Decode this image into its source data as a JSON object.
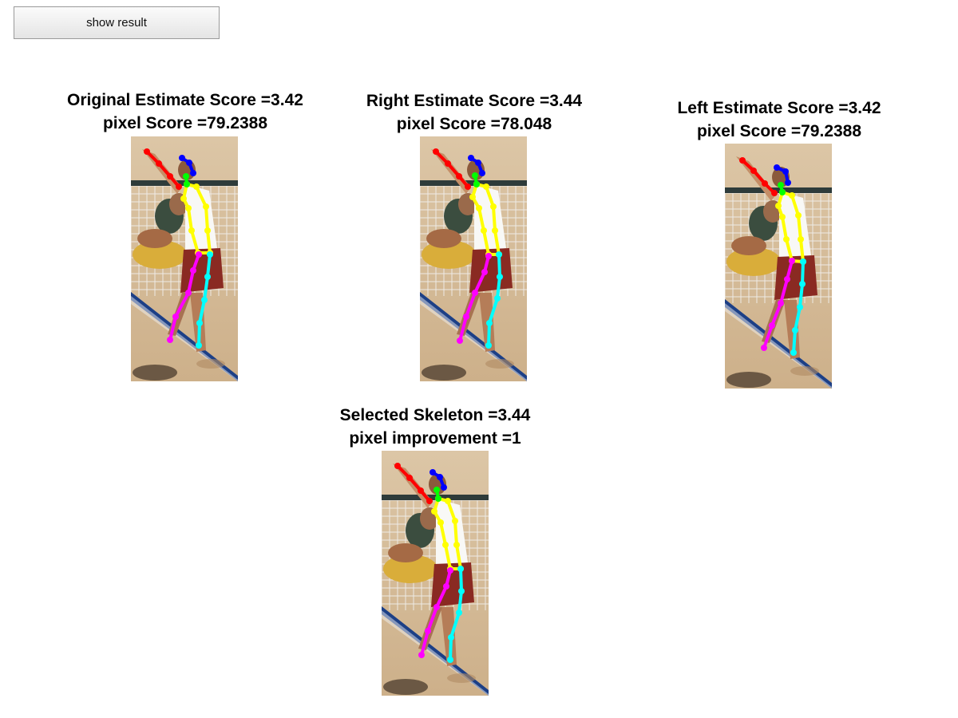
{
  "toolbar": {
    "show_result_label": "show result"
  },
  "panels": [
    {
      "line1": "Original Estimate Score =3.42",
      "line2": "pixel Score =79.2388"
    },
    {
      "line1": "Right Estimate Score =3.44",
      "line2": "pixel Score =78.048"
    },
    {
      "line1": "Left Estimate Score =3.42",
      "line2": "pixel Score =79.2388"
    },
    {
      "line1": "Selected Skeleton =3.44",
      "line2": "pixel improvement =1"
    }
  ],
  "skeleton_colors": {
    "left_arm": "#ff0000",
    "head": "#0000ff",
    "neck": "#00ff00",
    "torso": "#ffff00",
    "left_leg": "#ff00ff",
    "right_leg": "#00ffff"
  }
}
